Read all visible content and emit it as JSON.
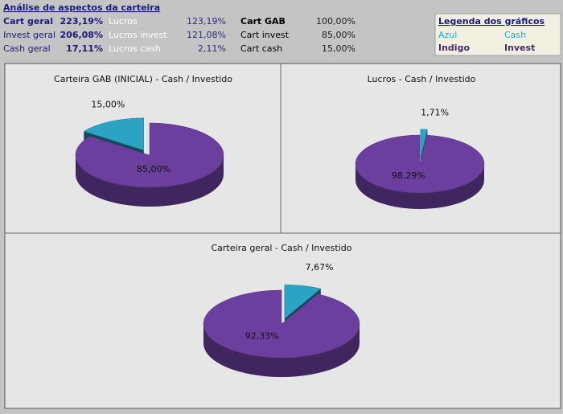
{
  "summary": {
    "title": "Análise de aspectos da carteira",
    "rows": [
      [
        "Cart geral",
        "223,19%",
        "Lucros",
        "123,19%",
        "Cart GAB",
        "100,00%"
      ],
      [
        "Invest geral",
        "206,08%",
        "Lucros invest",
        "121,08%",
        "Cart invest",
        "85,00%"
      ],
      [
        "Cash geral",
        "17,11%",
        "Lucros cash",
        "2,11%",
        "Cart cash",
        "15,00%"
      ]
    ]
  },
  "legend": {
    "title": "Legenda dos gráficos",
    "rows": [
      [
        "Azul",
        "Cash"
      ],
      [
        "Indigo",
        "Invest"
      ]
    ]
  },
  "chart_data": [
    {
      "type": "pie",
      "title": "Carteira GAB (INICIAL) - Cash / Investido",
      "values": [
        85,
        15
      ],
      "value_labels": [
        "85,00%",
        "15,00%"
      ],
      "colors": [
        "#6a3f9e",
        "#2aa3c4"
      ]
    },
    {
      "type": "pie",
      "title": "Lucros - Cash / Investido",
      "values": [
        1.71,
        98.29
      ],
      "value_labels": [
        "1,71%",
        "98,29%"
      ],
      "colors": [
        "#2aa3c4",
        "#6a3f9e"
      ]
    },
    {
      "type": "pie",
      "title": "Carteira geral - Cash / Investido",
      "values": [
        7.67,
        92.33
      ],
      "value_labels": [
        "7,67%",
        "92,33%"
      ],
      "colors": [
        "#2aa3c4",
        "#6a3f9e"
      ]
    }
  ]
}
